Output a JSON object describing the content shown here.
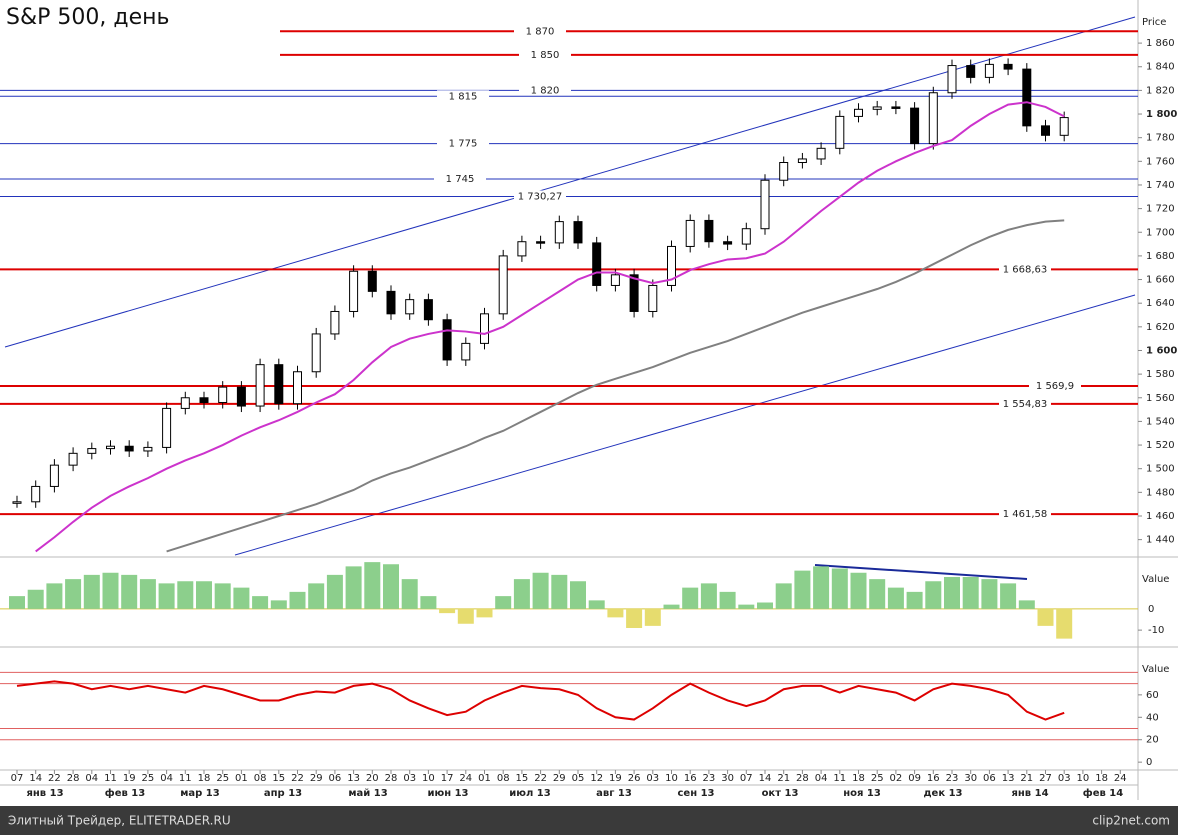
{
  "chart_data": {
    "type": "candlestick",
    "title": "S&P 500, день",
    "price_axis_label": "Price",
    "ylim": [
      1427,
      1888
    ],
    "yticks": [
      {
        "value": 1440,
        "label": "1 440"
      },
      {
        "value": 1460,
        "label": "1 460"
      },
      {
        "value": 1480,
        "label": "1 480"
      },
      {
        "value": 1500,
        "label": "1 500"
      },
      {
        "value": 1520,
        "label": "1 520"
      },
      {
        "value": 1540,
        "label": "1 540"
      },
      {
        "value": 1560,
        "label": "1 560"
      },
      {
        "value": 1580,
        "label": "1 580"
      },
      {
        "value": 1600,
        "label": "1 600"
      },
      {
        "value": 1620,
        "label": "1 620"
      },
      {
        "value": 1640,
        "label": "1 640"
      },
      {
        "value": 1660,
        "label": "1 660"
      },
      {
        "value": 1680,
        "label": "1 680"
      },
      {
        "value": 1700,
        "label": "1 700"
      },
      {
        "value": 1720,
        "label": "1 720"
      },
      {
        "value": 1740,
        "label": "1 740"
      },
      {
        "value": 1760,
        "label": "1 760"
      },
      {
        "value": 1780,
        "label": "1 780"
      },
      {
        "value": 1800,
        "label": "1 800"
      },
      {
        "value": 1820,
        "label": "1 820"
      },
      {
        "value": 1840,
        "label": "1 840"
      },
      {
        "value": 1860,
        "label": "1 860"
      }
    ],
    "x_day_labels": [
      "07",
      "14",
      "22",
      "28",
      "04",
      "11",
      "19",
      "25",
      "04",
      "11",
      "18",
      "25",
      "01",
      "08",
      "15",
      "22",
      "29",
      "06",
      "13",
      "20",
      "28",
      "03",
      "10",
      "17",
      "24",
      "01",
      "08",
      "15",
      "22",
      "29",
      "05",
      "12",
      "19",
      "26",
      "03",
      "10",
      "16",
      "23",
      "30",
      "07",
      "14",
      "21",
      "28",
      "04",
      "11",
      "18",
      "25",
      "02",
      "09",
      "16",
      "23",
      "30",
      "06",
      "13",
      "21",
      "27",
      "03",
      "10",
      "18",
      "24"
    ],
    "x_month_labels": [
      "янв 13",
      "фев 13",
      "мар 13",
      "апр 13",
      "май 13",
      "июн 13",
      "июл 13",
      "авг 13",
      "сен 13",
      "окт 13",
      "ноя 13",
      "дек 13",
      "янв 14",
      "фев 14"
    ],
    "series": [
      {
        "name": "close",
        "color": "#000000",
        "values": [
          1472,
          1485,
          1503,
          1513,
          1517,
          1519,
          1515,
          1518,
          1551,
          1560,
          1556,
          1569,
          1553,
          1588,
          1555,
          1582,
          1614,
          1633,
          1667,
          1650,
          1631,
          1643,
          1626,
          1592,
          1606,
          1631,
          1680,
          1692,
          1691,
          1709,
          1691,
          1655,
          1664,
          1633,
          1655,
          1688,
          1710,
          1692,
          1690,
          1703,
          1744,
          1759,
          1762,
          1771,
          1798,
          1804,
          1806,
          1805,
          1775,
          1818,
          1841,
          1831,
          1842,
          1838,
          1790,
          1782,
          1797
        ]
      },
      {
        "name": "ma50",
        "color": "#cc33cc",
        "values": [
          null,
          1430,
          1442,
          1455,
          1467,
          1477,
          1485,
          1492,
          1500,
          1507,
          1513,
          1520,
          1528,
          1535,
          1541,
          1548,
          1556,
          1563,
          1575,
          1590,
          1603,
          1610,
          1614,
          1617,
          1616,
          1614,
          1620,
          1630,
          1640,
          1650,
          1660,
          1666,
          1666,
          1661,
          1657,
          1660,
          1668,
          1673,
          1677,
          1678,
          1682,
          1692,
          1705,
          1718,
          1730,
          1742,
          1752,
          1760,
          1767,
          1773,
          1778,
          1790,
          1800,
          1808,
          1810,
          1806,
          1798
        ]
      },
      {
        "name": "ma200",
        "color": "#808080",
        "values": [
          null,
          null,
          null,
          null,
          null,
          null,
          null,
          null,
          1430,
          1435,
          1440,
          1445,
          1450,
          1455,
          1460,
          1465,
          1470,
          1476,
          1482,
          1490,
          1496,
          1501,
          1507,
          1513,
          1519,
          1526,
          1532,
          1540,
          1548,
          1556,
          1564,
          1571,
          1576,
          1581,
          1586,
          1592,
          1598,
          1603,
          1608,
          1614,
          1620,
          1626,
          1632,
          1637,
          1642,
          1647,
          1652,
          1658,
          1665,
          1673,
          1681,
          1689,
          1696,
          1702,
          1706,
          1709,
          1710
        ]
      }
    ],
    "levels": {
      "values": [
        1870,
        1850,
        1820,
        1815,
        1775,
        1745,
        1730.27,
        1668.63,
        1569.9,
        1554.83,
        1461.58
      ],
      "value_labels": [
        "1 870",
        "1 850",
        "1 820",
        "1 815",
        "1 775",
        "1 745",
        "1 730,27",
        "1 668,63",
        "1 569,9",
        "1 554,83",
        "1 461,58"
      ],
      "colors": [
        "#dd0000",
        "#dd0000",
        "#2233bb",
        "#2233bb",
        "#2233bb",
        "#2233bb",
        "#2233bb",
        "#dd0000",
        "#dd0000",
        "#dd0000",
        "#dd0000"
      ]
    },
    "oscillator": {
      "axis_label": "Value",
      "ylim": [
        -17,
        23
      ],
      "yticks": [
        0,
        -10
      ],
      "positive_color": "#8ccf8c",
      "negative_color": "#e6dc6e",
      "values": [
        6,
        9,
        12,
        14,
        16,
        17,
        16,
        14,
        12,
        13,
        13,
        12,
        10,
        6,
        4,
        8,
        12,
        16,
        20,
        22,
        21,
        14,
        6,
        -2,
        -7,
        -4,
        6,
        14,
        17,
        16,
        13,
        4,
        -4,
        -9,
        -8,
        2,
        10,
        12,
        8,
        2,
        3,
        12,
        18,
        20,
        19,
        17,
        14,
        10,
        8,
        13,
        15,
        15,
        14,
        12,
        4,
        -8,
        -14
      ]
    },
    "rsi": {
      "axis_label": "Value",
      "ylim": [
        -7,
        100
      ],
      "yticks": [
        0,
        20,
        40,
        60
      ],
      "levels": [
        80,
        70,
        30,
        20
      ],
      "color": "#dd0000",
      "values": [
        68,
        70,
        72,
        70,
        65,
        68,
        65,
        68,
        65,
        62,
        68,
        65,
        60,
        55,
        55,
        60,
        63,
        62,
        68,
        70,
        65,
        55,
        48,
        42,
        45,
        55,
        62,
        68,
        66,
        65,
        60,
        48,
        40,
        38,
        48,
        60,
        70,
        62,
        55,
        50,
        55,
        65,
        68,
        68,
        62,
        68,
        65,
        62,
        55,
        65,
        70,
        68,
        65,
        60,
        45,
        38,
        44
      ]
    }
  },
  "footer": {
    "left": "Элитный Трейдер, ELITETRADER.RU",
    "right": "clip2net.com"
  }
}
